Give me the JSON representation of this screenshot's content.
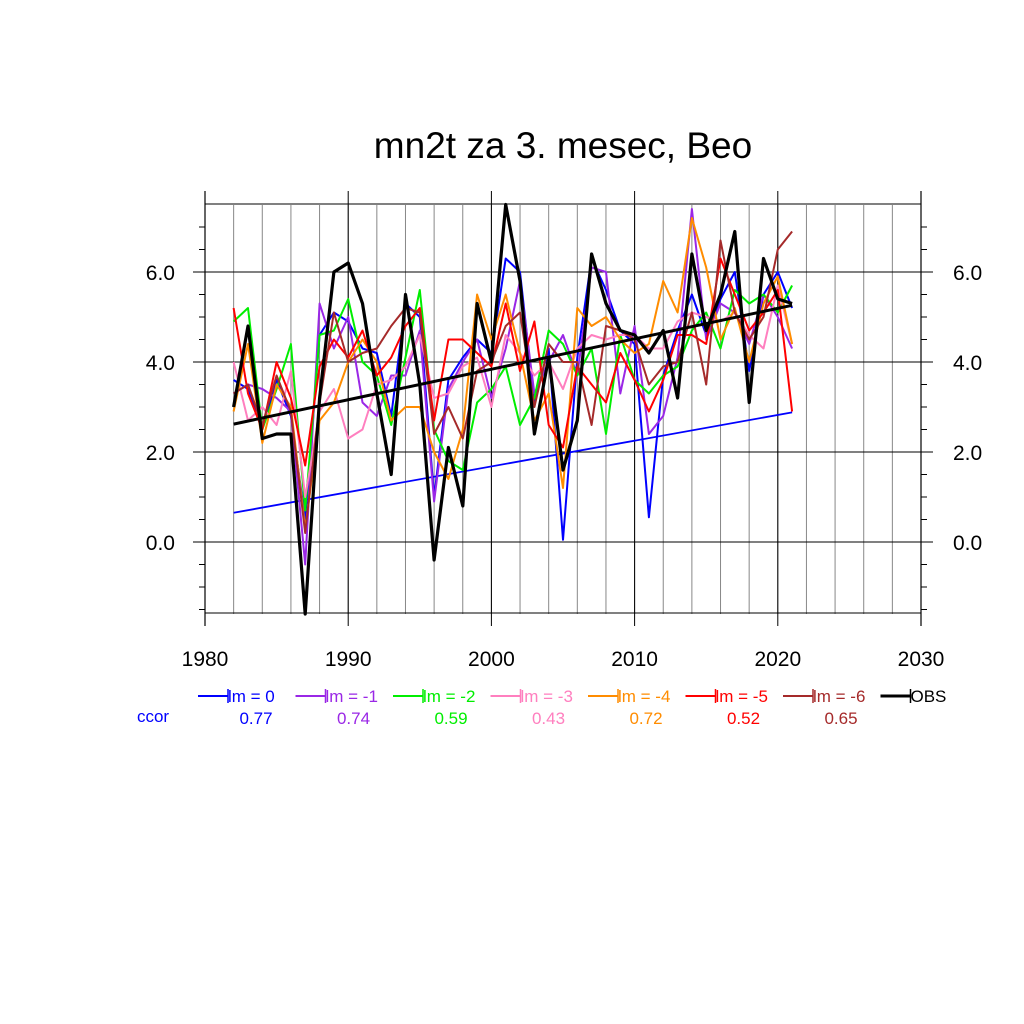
{
  "chart_data": {
    "type": "line",
    "title": "mn2t za 3. mesec, Beo",
    "xlabel": "",
    "ylabel": "",
    "xlim": [
      1980,
      2030
    ],
    "ylim": [
      -1.6,
      7.5
    ],
    "x_ticks": [
      1980,
      1990,
      2000,
      2010,
      2020,
      2030
    ],
    "x_tick_labels": [
      "1980",
      "1990",
      "2000",
      "2010",
      "2020",
      "2030"
    ],
    "y_ticks": [
      0,
      2,
      4,
      6
    ],
    "y_tick_labels": [
      "0.0",
      "2.0",
      "4.0",
      "6.0"
    ],
    "grid": true,
    "legend_position": "bottom",
    "ccor_label": "ccor",
    "years": [
      1982,
      1983,
      1984,
      1985,
      1986,
      1987,
      1988,
      1989,
      1990,
      1991,
      1992,
      1993,
      1994,
      1995,
      1996,
      1997,
      1998,
      1999,
      2000,
      2001,
      2002,
      2003,
      2004,
      2005,
      2006,
      2007,
      2008,
      2009,
      2010,
      2011,
      2012,
      2013,
      2014,
      2015,
      2016,
      2017,
      2018,
      2019,
      2020,
      2021
    ],
    "series": [
      {
        "name": "lm = 0",
        "ccor": "0.77",
        "color": "#0000ff",
        "values": [
          3.6,
          3.4,
          2.5,
          3.6,
          2.8,
          0.5,
          4.6,
          5.1,
          4.9,
          4.3,
          4.2,
          2.8,
          5.3,
          5.0,
          1.0,
          3.6,
          4.1,
          4.5,
          4.2,
          6.3,
          6.0,
          3.1,
          4.3,
          0.05,
          4.1,
          6.3,
          5.6,
          4.7,
          4.4,
          0.55,
          3.7,
          4.7,
          5.5,
          4.6,
          5.4,
          6.0,
          3.8,
          5.5,
          6.0,
          5.2
        ],
        "trend": [
          0.65,
          2.88
        ]
      },
      {
        "name": "lm = -1",
        "ccor": "0.74",
        "color": "#9a27e6",
        "values": [
          3.3,
          3.5,
          3.4,
          3.2,
          2.9,
          -0.5,
          5.3,
          4.3,
          5.0,
          3.1,
          2.8,
          3.7,
          3.7,
          4.7,
          0.9,
          3.4,
          4.0,
          4.5,
          3.2,
          4.3,
          5.8,
          3.3,
          4.0,
          4.6,
          3.7,
          6.1,
          6.0,
          3.3,
          4.8,
          2.4,
          2.8,
          4.1,
          7.4,
          4.5,
          5.3,
          5.1,
          4.4,
          5.5,
          5.0,
          4.3
        ]
      },
      {
        "name": "lm = -2",
        "ccor": "0.59",
        "color": "#00ee00",
        "values": [
          4.9,
          5.2,
          2.5,
          3.4,
          4.4,
          0.7,
          4.6,
          4.7,
          5.4,
          4.0,
          3.7,
          2.6,
          4.1,
          5.6,
          2.5,
          1.8,
          1.6,
          3.1,
          3.4,
          3.9,
          2.6,
          3.2,
          4.7,
          4.4,
          3.7,
          4.3,
          2.4,
          4.6,
          3.6,
          3.3,
          3.7,
          3.9,
          4.7,
          5.1,
          4.3,
          5.6,
          5.3,
          5.5,
          5.1,
          5.7
        ]
      },
      {
        "name": "lm = -3",
        "ccor": "0.43",
        "color": "#ff7fbf",
        "values": [
          4.0,
          2.7,
          3.0,
          2.6,
          3.8,
          1.0,
          2.9,
          3.4,
          2.3,
          2.5,
          3.5,
          3.6,
          3.9,
          4.6,
          3.2,
          3.3,
          3.9,
          4.1,
          3.0,
          4.6,
          4.2,
          3.7,
          4.0,
          3.4,
          4.3,
          4.6,
          4.5,
          4.6,
          4.6,
          4.3,
          4.3,
          4.9,
          5.1,
          5.0,
          4.9,
          5.1,
          4.6,
          4.3,
          5.7,
          4.4
        ]
      },
      {
        "name": "lm = -4",
        "ccor": "0.72",
        "color": "#ff8c00",
        "values": [
          2.9,
          4.4,
          2.2,
          3.5,
          3.0,
          0.3,
          2.7,
          3.1,
          4.0,
          4.5,
          4.0,
          2.7,
          3.0,
          3.0,
          2.0,
          1.4,
          2.5,
          5.5,
          4.5,
          5.5,
          4.2,
          2.7,
          3.3,
          1.2,
          5.2,
          4.8,
          5.0,
          4.5,
          4.2,
          4.4,
          5.8,
          5.1,
          7.2,
          6.1,
          4.5,
          5.2,
          4.0,
          5.3,
          5.9,
          4.4
        ]
      },
      {
        "name": "lm = -5",
        "ccor": "0.52",
        "color": "#ff0000",
        "values": [
          5.2,
          3.3,
          2.5,
          4.0,
          3.2,
          1.7,
          3.9,
          4.5,
          4.1,
          4.7,
          3.7,
          4.1,
          4.8,
          5.2,
          2.7,
          4.5,
          4.5,
          4.2,
          3.9,
          5.3,
          3.8,
          4.9,
          2.6,
          2.1,
          3.9,
          3.5,
          3.1,
          4.2,
          3.6,
          2.9,
          3.6,
          4.6,
          4.6,
          4.4,
          6.3,
          5.5,
          4.7,
          5.1,
          5.6,
          2.9
        ]
      },
      {
        "name": "lm = -6",
        "ccor": "0.65",
        "color": "#a52a2a",
        "values": [
          3.3,
          3.5,
          2.6,
          3.7,
          2.9,
          0.2,
          3.1,
          5.1,
          4.0,
          4.2,
          4.3,
          4.8,
          5.2,
          5.1,
          2.4,
          3.0,
          2.3,
          3.8,
          4.0,
          4.8,
          5.1,
          3.0,
          4.4,
          4.0,
          4.0,
          2.6,
          4.8,
          4.7,
          4.5,
          3.5,
          3.9,
          4.0,
          5.1,
          3.5,
          6.7,
          5.1,
          4.5,
          5.0,
          6.5,
          6.9
        ]
      },
      {
        "name": "OBS",
        "ccor": "",
        "color": "#000000",
        "values": [
          3.0,
          4.8,
          2.3,
          2.4,
          2.4,
          -1.6,
          3.2,
          6.0,
          6.2,
          5.3,
          3.3,
          1.5,
          5.5,
          3.5,
          -0.4,
          2.1,
          0.8,
          5.3,
          4.0,
          7.5,
          5.8,
          2.4,
          4.1,
          1.6,
          2.7,
          6.4,
          5.3,
          4.7,
          4.6,
          4.2,
          4.7,
          3.2,
          6.4,
          4.7,
          5.5,
          6.9,
          3.1,
          6.3,
          5.4,
          5.3
        ],
        "trend": [
          2.62,
          5.26
        ]
      }
    ]
  }
}
